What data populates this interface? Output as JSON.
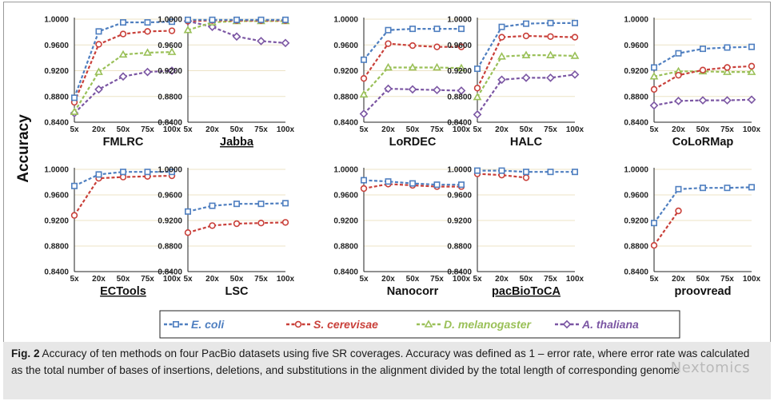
{
  "figure": {
    "ylabel": "Accuracy",
    "x_categories": [
      "5x",
      "20x",
      "50x",
      "75x",
      "100x"
    ],
    "y_ticks": [
      "0.8400",
      "0.8800",
      "0.9200",
      "0.9600",
      "1.0000"
    ],
    "ylim": [
      0.84,
      1.0
    ],
    "series_styles": [
      {
        "name": "E. coli",
        "color": "#4f7fc0",
        "marker": "square"
      },
      {
        "name": "S. cerevisae",
        "color": "#c9403a",
        "marker": "circle"
      },
      {
        "name": "D. melanogaster",
        "color": "#9ac058",
        "marker": "triangle"
      },
      {
        "name": "A. thaliana",
        "color": "#7b56a3",
        "marker": "diamond"
      }
    ]
  },
  "chart_data": [
    {
      "type": "line",
      "title": "FMLRC",
      "underlined": false,
      "ylim": [
        0.84,
        1.0
      ],
      "categories": [
        "5x",
        "20x",
        "50x",
        "75x",
        "100x"
      ],
      "series": [
        {
          "name": "E. coli",
          "values": [
            0.878,
            0.981,
            0.995,
            0.995,
            0.996
          ]
        },
        {
          "name": "S. cerevisae",
          "values": [
            0.871,
            0.961,
            0.977,
            0.981,
            0.982
          ]
        },
        {
          "name": "D. melanogaster",
          "values": [
            0.856,
            0.918,
            0.945,
            0.948,
            0.949
          ]
        },
        {
          "name": "A. thaliana",
          "values": [
            0.854,
            0.891,
            0.911,
            0.918,
            0.92
          ]
        }
      ]
    },
    {
      "type": "line",
      "title": "Jabba",
      "underlined": true,
      "ylim": [
        0.84,
        1.0
      ],
      "categories": [
        "5x",
        "20x",
        "50x",
        "75x",
        "100x"
      ],
      "series": [
        {
          "name": "E. coli",
          "values": [
            0.999,
            0.999,
            0.999,
            0.999,
            0.999
          ]
        },
        {
          "name": "S. cerevisae",
          "values": [
            0.997,
            0.998,
            0.998,
            0.998,
            0.998
          ]
        },
        {
          "name": "D. melanogaster",
          "values": [
            0.983,
            0.995,
            0.997,
            0.997,
            0.997
          ]
        },
        {
          "name": "A. thaliana",
          "values": [
            0.997,
            0.988,
            0.973,
            0.966,
            0.963
          ]
        }
      ]
    },
    {
      "type": "line",
      "title": "LoRDEC",
      "underlined": false,
      "ylim": [
        0.84,
        1.0
      ],
      "categories": [
        "5x",
        "20x",
        "50x",
        "75x",
        "100x"
      ],
      "series": [
        {
          "name": "E. coli",
          "values": [
            0.937,
            0.983,
            0.985,
            0.985,
            0.985
          ]
        },
        {
          "name": "S. cerevisae",
          "values": [
            0.908,
            0.962,
            0.959,
            0.957,
            0.957
          ]
        },
        {
          "name": "D. melanogaster",
          "values": [
            0.883,
            0.925,
            0.925,
            0.925,
            0.924
          ]
        },
        {
          "name": "A. thaliana",
          "values": [
            0.853,
            0.892,
            0.891,
            0.89,
            0.889
          ]
        }
      ]
    },
    {
      "type": "line",
      "title": "HALC",
      "underlined": false,
      "ylim": [
        0.84,
        1.0
      ],
      "categories": [
        "5x",
        "20x",
        "50x",
        "75x",
        "100x"
      ],
      "series": [
        {
          "name": "E. coli",
          "values": [
            0.923,
            0.988,
            0.993,
            0.994,
            0.994
          ]
        },
        {
          "name": "S. cerevisae",
          "values": [
            0.893,
            0.972,
            0.974,
            0.973,
            0.972
          ]
        },
        {
          "name": "D. melanogaster",
          "values": [
            0.879,
            0.942,
            0.944,
            0.944,
            0.943
          ]
        },
        {
          "name": "A. thaliana",
          "values": [
            0.852,
            0.906,
            0.909,
            0.909,
            0.914
          ]
        }
      ]
    },
    {
      "type": "line",
      "title": "CoLoRMap",
      "underlined": false,
      "ylim": [
        0.84,
        1.0
      ],
      "categories": [
        "5x",
        "20x",
        "50x",
        "75x",
        "100x"
      ],
      "series": [
        {
          "name": "E. coli",
          "values": [
            0.925,
            0.947,
            0.954,
            0.956,
            0.957
          ]
        },
        {
          "name": "S. cerevisae",
          "values": [
            0.891,
            0.913,
            0.921,
            0.925,
            0.927
          ]
        },
        {
          "name": "D. melanogaster",
          "values": [
            0.911,
            0.919,
            0.919,
            0.918,
            0.918
          ]
        },
        {
          "name": "A. thaliana",
          "values": [
            0.866,
            0.873,
            0.874,
            0.874,
            0.875
          ]
        }
      ]
    },
    {
      "type": "line",
      "title": "ECTools",
      "underlined": true,
      "ylim": [
        0.84,
        1.0
      ],
      "categories": [
        "5x",
        "20x",
        "50x",
        "75x",
        "100x"
      ],
      "series": [
        {
          "name": "E. coli",
          "values": [
            0.974,
            0.992,
            0.996,
            0.996,
            0.996
          ]
        },
        {
          "name": "S. cerevisae",
          "values": [
            0.928,
            0.986,
            0.988,
            0.989,
            0.99
          ]
        }
      ]
    },
    {
      "type": "line",
      "title": "LSC",
      "underlined": false,
      "ylim": [
        0.84,
        1.0
      ],
      "categories": [
        "5x",
        "20x",
        "50x",
        "75x",
        "100x"
      ],
      "series": [
        {
          "name": "E. coli",
          "values": [
            0.934,
            0.943,
            0.946,
            0.946,
            0.947
          ]
        },
        {
          "name": "S. cerevisae",
          "values": [
            0.901,
            0.912,
            0.915,
            0.916,
            0.917
          ]
        }
      ]
    },
    {
      "type": "line",
      "title": "Nanocorr",
      "underlined": false,
      "ylim": [
        0.84,
        1.0
      ],
      "categories": [
        "5x",
        "20x",
        "50x",
        "75x",
        "100x"
      ],
      "series": [
        {
          "name": "E. coli",
          "values": [
            0.983,
            0.981,
            0.978,
            0.976,
            0.976
          ]
        },
        {
          "name": "S. cerevisae",
          "values": [
            0.97,
            0.977,
            0.975,
            0.973,
            0.973
          ]
        }
      ]
    },
    {
      "type": "line",
      "title": "pacBioToCA",
      "underlined": true,
      "ylim": [
        0.84,
        1.0
      ],
      "categories": [
        "5x",
        "20x",
        "50x",
        "75x",
        "100x"
      ],
      "series": [
        {
          "name": "E. coli",
          "values": [
            0.998,
            0.998,
            0.996,
            0.996,
            0.996
          ]
        },
        {
          "name": "S. cerevisae",
          "values": [
            0.993,
            0.991,
            0.987,
            null,
            null
          ]
        }
      ]
    },
    {
      "type": "line",
      "title": "proovread",
      "underlined": false,
      "ylim": [
        0.84,
        1.0
      ],
      "categories": [
        "5x",
        "20x",
        "50x",
        "75x",
        "100x"
      ],
      "series": [
        {
          "name": "E. coli",
          "values": [
            0.916,
            0.969,
            0.971,
            0.971,
            0.972
          ]
        },
        {
          "name": "S. cerevisae",
          "values": [
            0.881,
            0.935,
            null,
            null,
            null
          ]
        }
      ]
    }
  ],
  "legend": {
    "items": [
      {
        "label": "E. coli"
      },
      {
        "label": "S. cerevisae"
      },
      {
        "label": "D. melanogaster"
      },
      {
        "label": "A. thaliana"
      }
    ]
  },
  "caption": {
    "fig_label": "Fig. 2",
    "text": "Accuracy of ten methods on four PacBio datasets using five SR coverages. Accuracy was defined as 1 – error rate, where error rate was calculated as the total number of bases of insertions, deletions, and substitutions in the alignment divided by the total length of corresponding genome"
  },
  "watermark": "Nextomics"
}
